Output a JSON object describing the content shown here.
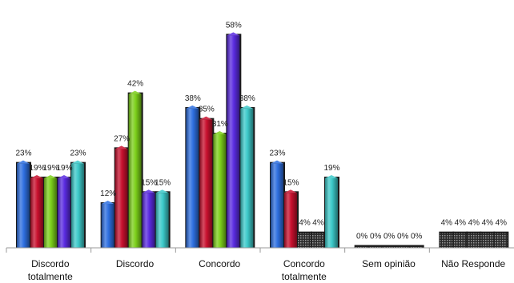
{
  "chart_data": {
    "type": "bar",
    "title": "",
    "xlabel": "",
    "ylabel": "",
    "ylim": [
      0,
      62
    ],
    "grid": false,
    "legend": "none",
    "categories": [
      [
        "Discordo",
        "totalmente"
      ],
      [
        "Discordo"
      ],
      [
        "Concordo"
      ],
      [
        "Concordo",
        "totalmente"
      ],
      [
        "Sem opinião"
      ],
      [
        "Não Responde"
      ]
    ],
    "series": [
      {
        "color": "#2e6fe0",
        "values": [
          23,
          12,
          38,
          23,
          0,
          4
        ],
        "labels": [
          "23%",
          "12%",
          "38%",
          "23%",
          "0%",
          "4%"
        ]
      },
      {
        "color": "#c8102e",
        "values": [
          19,
          27,
          35,
          15,
          0,
          4
        ],
        "labels": [
          "19%",
          "27%",
          "35%",
          "15%",
          "0%",
          "4%"
        ]
      },
      {
        "color": "#7ccf1a",
        "values": [
          19,
          42,
          31,
          4,
          0,
          4
        ],
        "labels": [
          "19%",
          "42%",
          "31%",
          "4%",
          "0%",
          "4%"
        ]
      },
      {
        "color": "#5a2be0",
        "values": [
          19,
          15,
          58,
          4,
          0,
          4
        ],
        "labels": [
          "19%",
          "15%",
          "58%",
          "4%",
          "0%",
          "4%"
        ]
      },
      {
        "color": "#3cc9c9",
        "values": [
          23,
          15,
          38,
          19,
          0,
          4
        ],
        "labels": [
          "23%",
          "15%",
          "38%",
          "19%",
          "0%",
          "4%"
        ]
      }
    ]
  }
}
